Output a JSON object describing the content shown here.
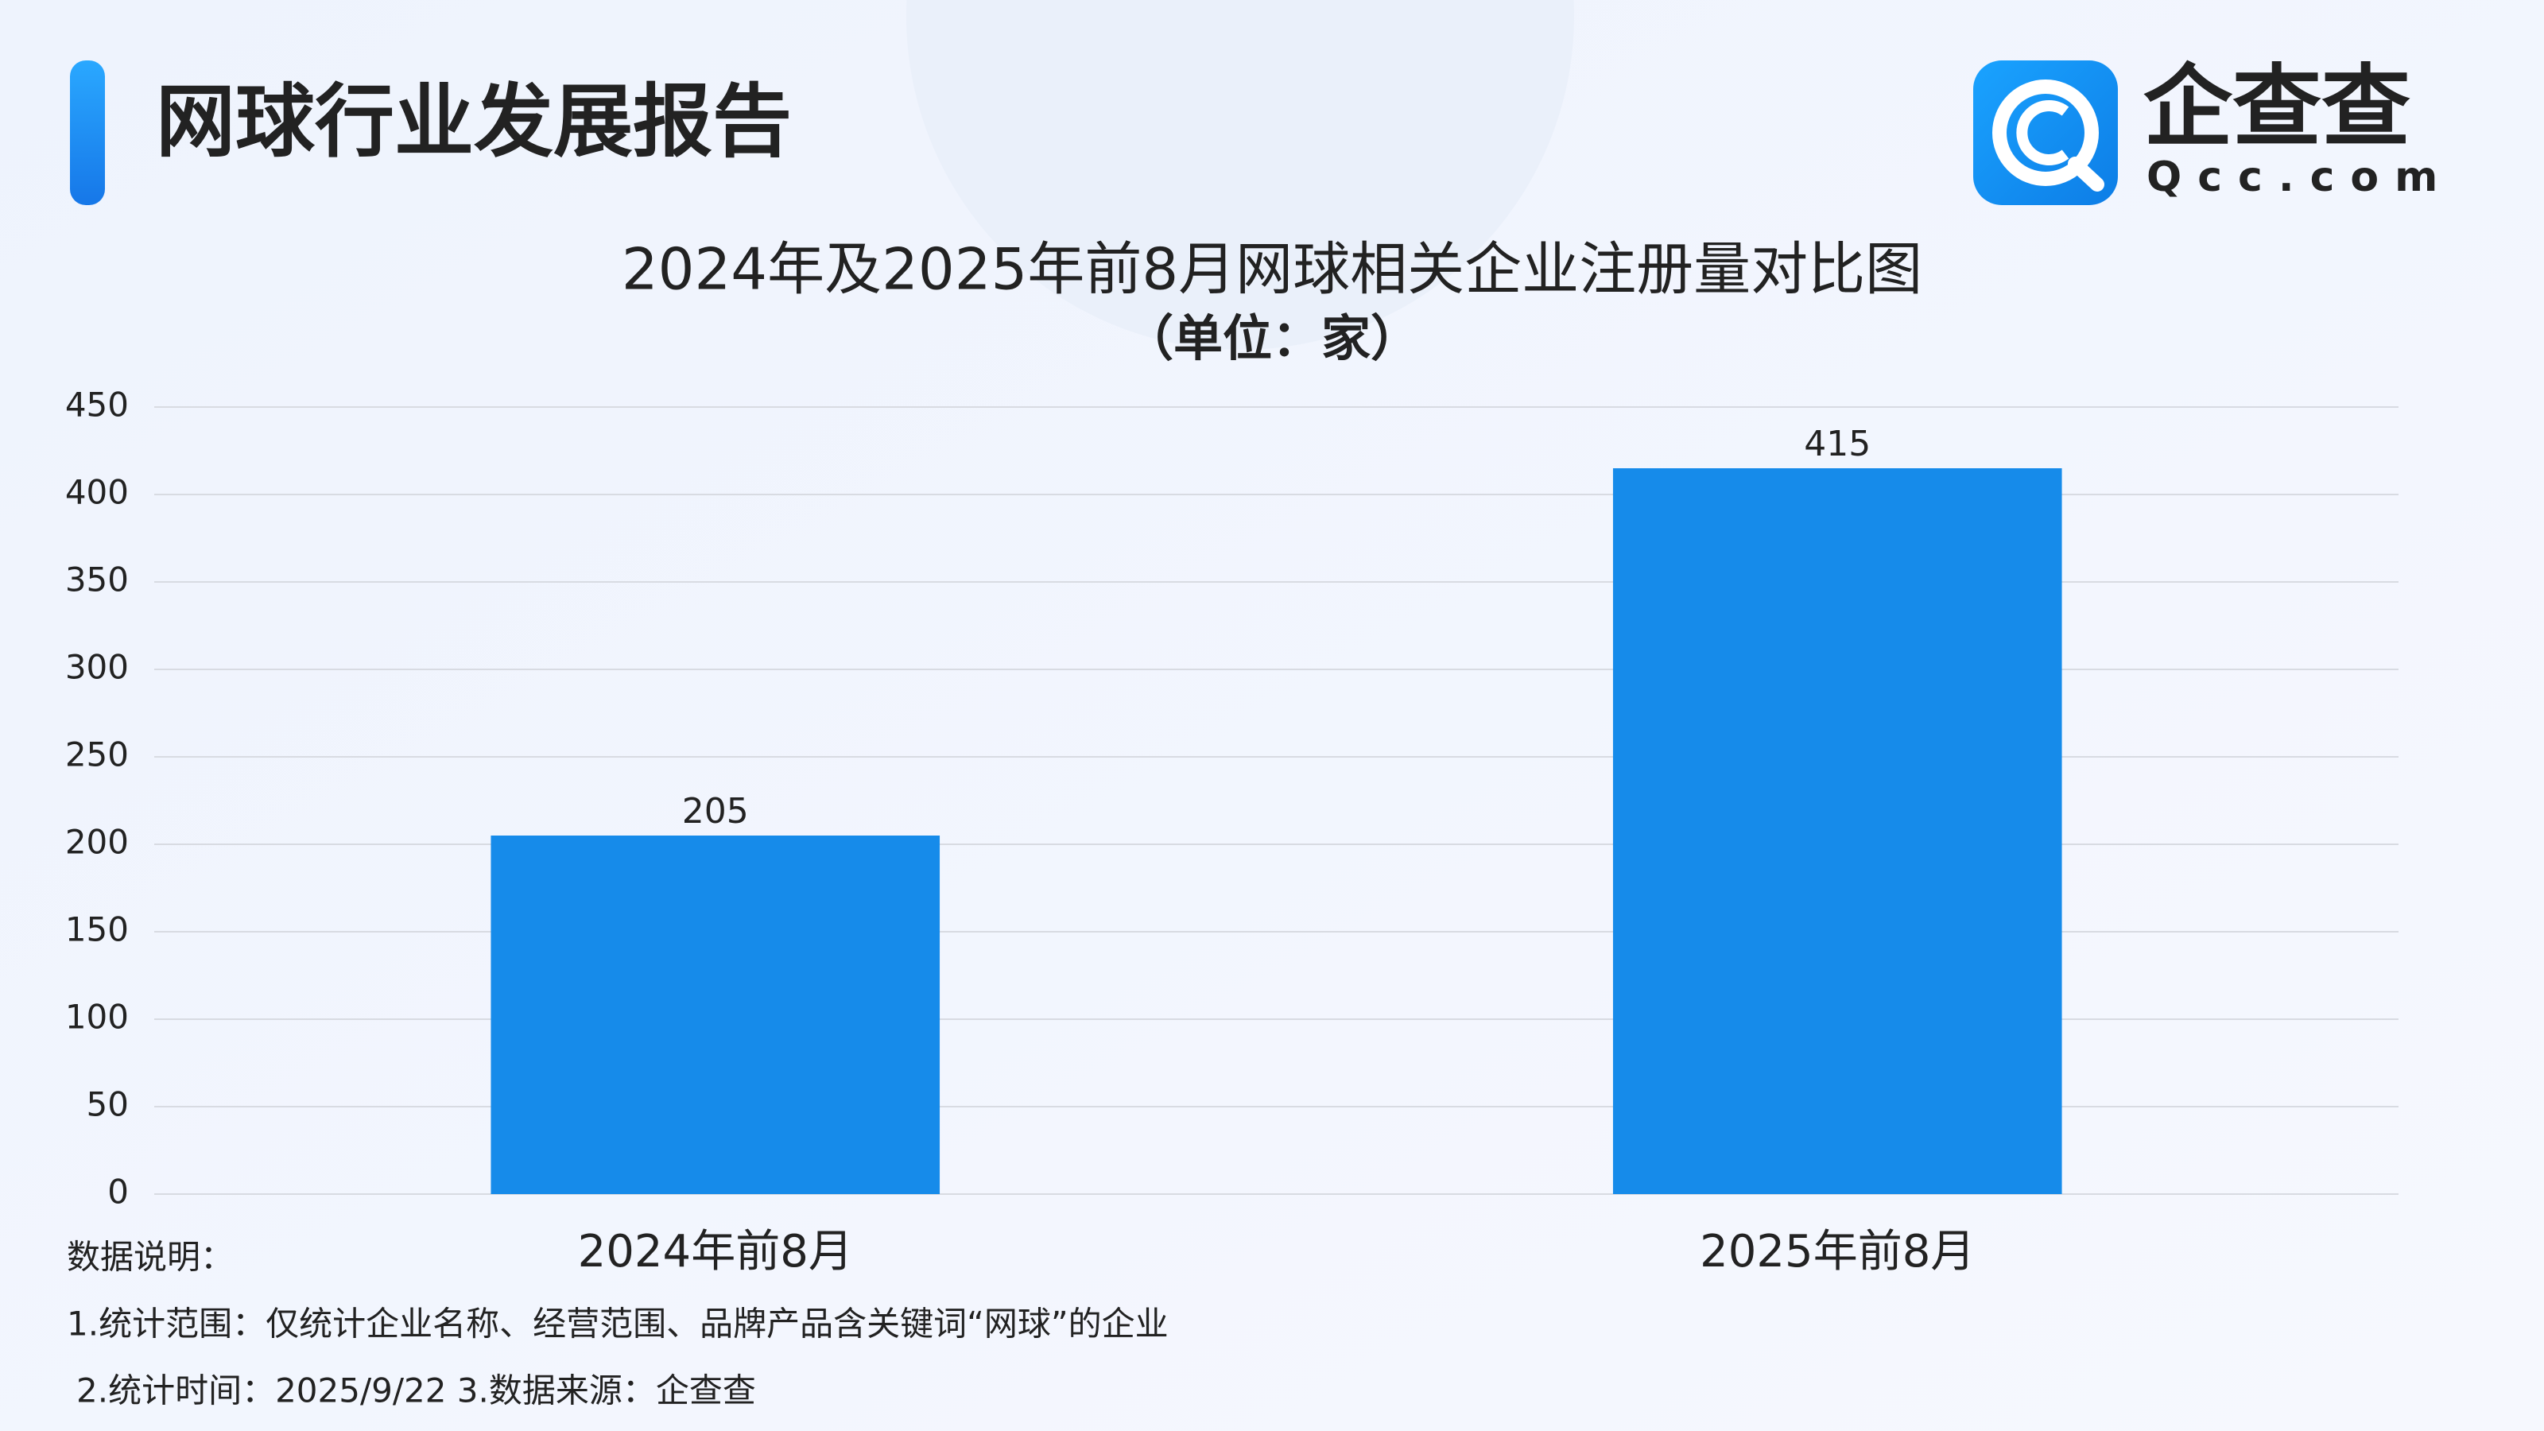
{
  "header": {
    "title": "网球行业发展报告",
    "logo_text": "企查查",
    "logo_sub": "Qcc.com"
  },
  "chart_data": {
    "type": "bar",
    "title": "2024年及2025年前8月网球相关企业注册量对比图",
    "subtitle": "（单位：家）",
    "categories": [
      "2024年前8月",
      "2025年前8月"
    ],
    "values": [
      205,
      415
    ],
    "color": "#168bea",
    "ylim": [
      0,
      450
    ],
    "yticks": [
      0,
      50,
      100,
      150,
      200,
      250,
      300,
      350,
      400,
      450
    ],
    "grid": true
  },
  "notes": [
    "数据说明：",
    "1.统计范围：仅统计企业名称、经营范围、品牌产品含关键词“网球”的企业",
    "2.统计时间：2025/9/22 3.数据来源：企查查"
  ]
}
